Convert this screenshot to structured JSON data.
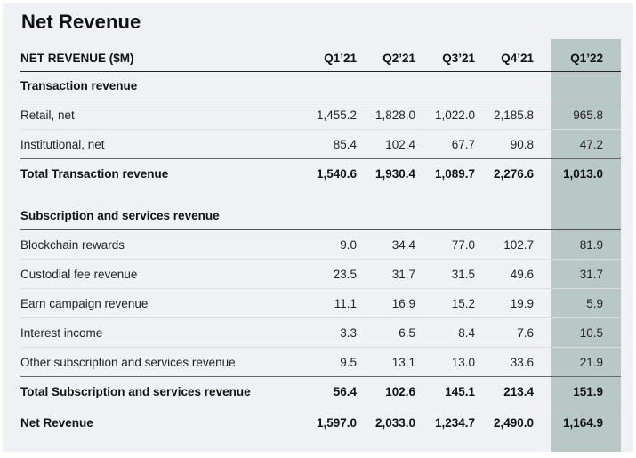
{
  "title": "Net Revenue",
  "table": {
    "header": [
      "NET REVENUE ($M)",
      "Q1’21",
      "Q2’21",
      "Q3’21",
      "Q4’21",
      "Q1’22"
    ],
    "sections": [
      {
        "label": "Transaction revenue",
        "rows": [
          {
            "label": "Retail, net",
            "values": [
              "1,455.2",
              "1,828.0",
              "1,022.0",
              "2,185.8",
              "965.8"
            ]
          },
          {
            "label": "Institutional, net",
            "values": [
              "85.4",
              "102.4",
              "67.7",
              "90.8",
              "47.2"
            ]
          }
        ],
        "total": {
          "label": "Total Transaction revenue",
          "values": [
            "1,540.6",
            "1,930.4",
            "1,089.7",
            "2,276.6",
            "1,013.0"
          ]
        }
      },
      {
        "label": "Subscription and services revenue",
        "rows": [
          {
            "label": "Blockchain rewards",
            "values": [
              "9.0",
              "34.4",
              "77.0",
              "102.7",
              "81.9"
            ]
          },
          {
            "label": "Custodial fee revenue",
            "values": [
              "23.5",
              "31.7",
              "31.5",
              "49.6",
              "31.7"
            ]
          },
          {
            "label": "Earn campaign revenue",
            "values": [
              "11.1",
              "16.9",
              "15.2",
              "19.9",
              "5.9"
            ]
          },
          {
            "label": "Interest income",
            "values": [
              "3.3",
              "6.5",
              "8.4",
              "7.6",
              "10.5"
            ]
          },
          {
            "label": "Other subscription and services revenue",
            "values": [
              "9.5",
              "13.1",
              "13.0",
              "33.6",
              "21.9"
            ]
          }
        ],
        "total": {
          "label": "Total Subscription and services revenue",
          "values": [
            "56.4",
            "102.6",
            "145.1",
            "213.4",
            "151.9"
          ]
        }
      }
    ],
    "net": {
      "label": "Net Revenue",
      "values": [
        "1,597.0",
        "2,033.0",
        "1,234.7",
        "2,490.0",
        "1,164.9"
      ]
    }
  },
  "colors": {
    "highlight_column": "#b8c8c4",
    "card_background": "#f0f1f4"
  }
}
